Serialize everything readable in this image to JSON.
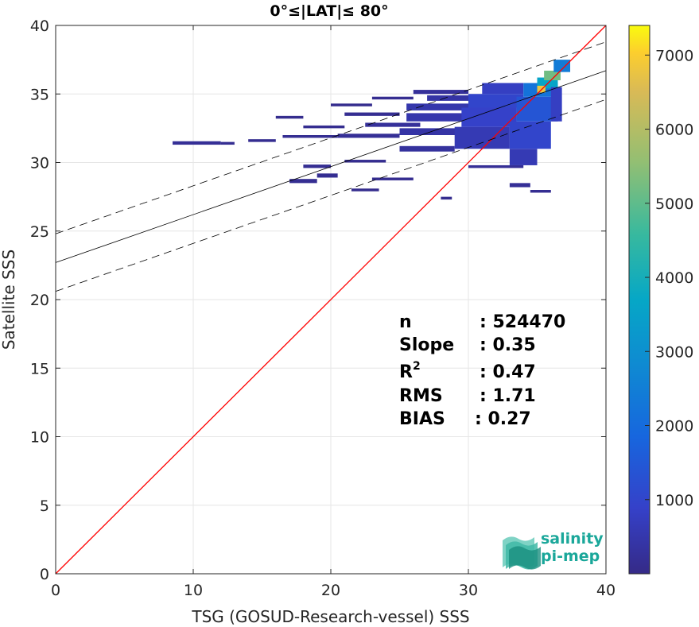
{
  "chart_data": {
    "type": "heatmap",
    "title": "0°≤|LAT|≤ 80°",
    "xlabel": "TSG (GOSUD-Research-vessel) SSS",
    "ylabel": "Satellite SSS",
    "xlim": [
      0,
      40
    ],
    "ylim": [
      0,
      40
    ],
    "x_ticks": [
      0,
      10,
      20,
      30,
      40
    ],
    "y_ticks": [
      0,
      5,
      10,
      15,
      20,
      25,
      30,
      35,
      40
    ],
    "grid": true,
    "colorbar": {
      "colormap": "parula",
      "range": [
        0,
        7400
      ],
      "ticks": [
        1000,
        2000,
        3000,
        4000,
        5000,
        6000,
        7000
      ]
    },
    "identity_line": {
      "color": "#ff0000",
      "from": [
        0,
        0
      ],
      "to": [
        40,
        40
      ]
    },
    "regression": {
      "intercept": 22.7,
      "slope": 0.35,
      "band_offset": 2.1
    },
    "density_cells": [
      {
        "x": 8.5,
        "y": 31.3,
        "w": 3.5,
        "h": 0.25,
        "v": 200
      },
      {
        "x": 12.0,
        "y": 31.3,
        "w": 1.0,
        "h": 0.2,
        "v": 150
      },
      {
        "x": 14.0,
        "y": 31.5,
        "w": 2.0,
        "h": 0.2,
        "v": 120
      },
      {
        "x": 16.5,
        "y": 31.8,
        "w": 4.0,
        "h": 0.2,
        "v": 150
      },
      {
        "x": 18.0,
        "y": 32.5,
        "w": 3.0,
        "h": 0.2,
        "v": 120
      },
      {
        "x": 16.0,
        "y": 33.2,
        "w": 2.0,
        "h": 0.2,
        "v": 100
      },
      {
        "x": 20.5,
        "y": 31.8,
        "w": 4.5,
        "h": 0.3,
        "v": 200
      },
      {
        "x": 20.0,
        "y": 34.1,
        "w": 3.0,
        "h": 0.2,
        "v": 100
      },
      {
        "x": 23.0,
        "y": 34.6,
        "w": 3.0,
        "h": 0.2,
        "v": 120
      },
      {
        "x": 21.0,
        "y": 33.4,
        "w": 4.0,
        "h": 0.25,
        "v": 150
      },
      {
        "x": 22.5,
        "y": 32.6,
        "w": 4.0,
        "h": 0.3,
        "v": 250
      },
      {
        "x": 25.0,
        "y": 30.8,
        "w": 4.0,
        "h": 0.4,
        "v": 300
      },
      {
        "x": 25.0,
        "y": 32.0,
        "w": 5.0,
        "h": 0.5,
        "v": 400
      },
      {
        "x": 25.5,
        "y": 33.0,
        "w": 5.0,
        "h": 0.6,
        "v": 500
      },
      {
        "x": 25.5,
        "y": 33.8,
        "w": 5.0,
        "h": 0.5,
        "v": 500
      },
      {
        "x": 27.0,
        "y": 34.5,
        "w": 4.0,
        "h": 0.4,
        "v": 400
      },
      {
        "x": 26.0,
        "y": 35.0,
        "w": 4.0,
        "h": 0.3,
        "v": 250
      },
      {
        "x": 18.0,
        "y": 29.6,
        "w": 2.0,
        "h": 0.25,
        "v": 150
      },
      {
        "x": 19.0,
        "y": 28.9,
        "w": 1.5,
        "h": 0.3,
        "v": 150
      },
      {
        "x": 17.0,
        "y": 28.5,
        "w": 2.0,
        "h": 0.3,
        "v": 150
      },
      {
        "x": 21.0,
        "y": 30.0,
        "w": 3.0,
        "h": 0.2,
        "v": 120
      },
      {
        "x": 23.0,
        "y": 28.7,
        "w": 3.0,
        "h": 0.2,
        "v": 120
      },
      {
        "x": 21.5,
        "y": 27.9,
        "w": 2.0,
        "h": 0.2,
        "v": 100
      },
      {
        "x": 28.0,
        "y": 27.3,
        "w": 0.8,
        "h": 0.2,
        "v": 100
      },
      {
        "x": 29.0,
        "y": 31.0,
        "w": 4.0,
        "h": 1.6,
        "v": 600
      },
      {
        "x": 29.5,
        "y": 32.6,
        "w": 4.0,
        "h": 1.4,
        "v": 900
      },
      {
        "x": 30.0,
        "y": 34.0,
        "w": 4.0,
        "h": 1.0,
        "v": 1000
      },
      {
        "x": 31.0,
        "y": 35.0,
        "w": 3.0,
        "h": 0.8,
        "v": 800
      },
      {
        "x": 33.0,
        "y": 29.8,
        "w": 2.0,
        "h": 1.2,
        "v": 600
      },
      {
        "x": 33.0,
        "y": 31.0,
        "w": 3.0,
        "h": 2.0,
        "v": 1000
      },
      {
        "x": 33.5,
        "y": 33.0,
        "w": 3.0,
        "h": 1.8,
        "v": 1400
      },
      {
        "x": 34.0,
        "y": 34.8,
        "w": 2.5,
        "h": 1.0,
        "v": 2200
      },
      {
        "x": 35.0,
        "y": 35.4,
        "w": 1.5,
        "h": 0.8,
        "v": 3600
      },
      {
        "x": 35.5,
        "y": 36.0,
        "w": 1.2,
        "h": 0.7,
        "v": 5200
      },
      {
        "x": 36.2,
        "y": 36.6,
        "w": 1.2,
        "h": 0.9,
        "v": 2400
      },
      {
        "x": 36.0,
        "y": 33.0,
        "w": 0.8,
        "h": 2.5,
        "v": 800
      },
      {
        "x": 33.0,
        "y": 28.2,
        "w": 1.5,
        "h": 0.3,
        "v": 200
      },
      {
        "x": 34.5,
        "y": 27.8,
        "w": 1.5,
        "h": 0.2,
        "v": 150
      },
      {
        "x": 30.0,
        "y": 29.6,
        "w": 4.0,
        "h": 0.2,
        "v": 200
      },
      {
        "x": 35.0,
        "y": 35.1,
        "w": 0.6,
        "h": 0.5,
        "v": 6800
      }
    ],
    "stats": [
      {
        "label": "n",
        "value": ": 524470"
      },
      {
        "label": "Slope",
        "value": ": 0.35"
      },
      {
        "label": "R2",
        "value": ": 0.47"
      },
      {
        "label": "RMS",
        "value": ": 1.71"
      },
      {
        "label": "BIAS",
        "value": ": 0.27"
      }
    ]
  },
  "logo": {
    "line1": "salinity",
    "line2": "pi-mep",
    "color": "#1aa79a"
  }
}
